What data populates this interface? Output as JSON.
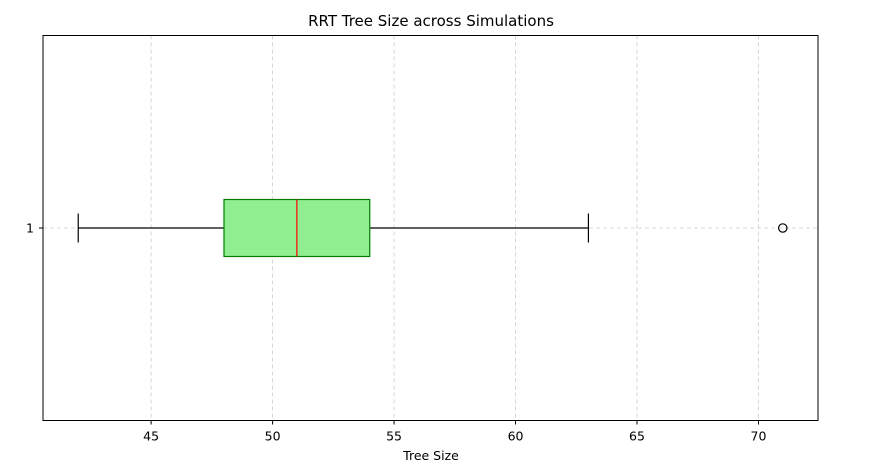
{
  "chart_data": {
    "type": "boxplot",
    "orientation": "horizontal",
    "title": "RRT Tree Size across Simulations",
    "xlabel": "Tree Size",
    "ylabel": "",
    "xlim": [
      40.55,
      72.45
    ],
    "xticks": [
      45,
      50,
      55,
      60,
      65,
      70
    ],
    "yticks": [
      "1"
    ],
    "grid": true,
    "boxes": [
      {
        "label": "1",
        "whisker_low": 42,
        "q1": 48,
        "median": 51,
        "q3": 54,
        "whisker_high": 63,
        "outliers": [
          71
        ]
      }
    ],
    "colors": {
      "box_fill": "#90ee90",
      "box_edge": "#008000",
      "median": "#ff0000",
      "whisker": "#000000",
      "grid": "#cccccc"
    }
  }
}
